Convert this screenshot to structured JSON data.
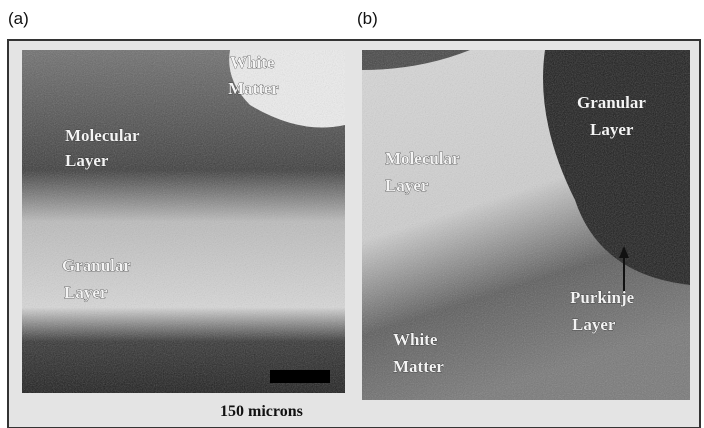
{
  "panels": [
    {
      "label": "(a)",
      "annotations": [
        [
          "White",
          "Matter"
        ],
        [
          "Molecular",
          "Layer"
        ],
        [
          "Granular",
          "Layer"
        ]
      ],
      "scale_bar": "150 microns"
    },
    {
      "label": "(b)",
      "annotations": [
        [
          "Granular",
          "Layer"
        ],
        [
          "Molecular",
          "Layer"
        ],
        [
          "Purkinje",
          "Layer"
        ],
        [
          "White",
          "Matter"
        ]
      ]
    }
  ]
}
